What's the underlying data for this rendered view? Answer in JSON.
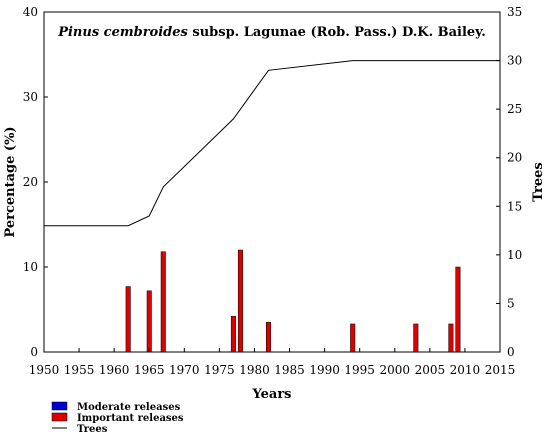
{
  "chart_data": {
    "type": "bar+line",
    "title_italic": "Pinus cembroides",
    "title_rest": " subsp. Lagunae (Rob. Pass.) D.K. Bailey.",
    "xlabel": "Years",
    "ylabel_left": "Percentage (%)",
    "ylabel_right": "Trees",
    "xlim": [
      1950,
      2015
    ],
    "ylim_left": [
      0,
      40
    ],
    "ylim_right": [
      0,
      35
    ],
    "x_ticks": [
      "1950",
      "1955",
      "1960",
      "1965",
      "1970",
      "1975",
      "1980",
      "1985",
      "1990",
      "1995",
      "2000",
      "2005",
      "2010",
      "2015"
    ],
    "y_left_ticks": [
      "0",
      "10",
      "20",
      "30",
      "40"
    ],
    "y_right_ticks": [
      "0",
      "5",
      "10",
      "15",
      "20",
      "25",
      "30",
      "35"
    ],
    "grid": false,
    "legend_position": "bottom-left",
    "series": [
      {
        "name": "Moderate releases",
        "kind": "bar",
        "axis": "left",
        "color": "#0000cc",
        "points": []
      },
      {
        "name": "Important releases",
        "kind": "bar",
        "axis": "left",
        "color": "#dd0000",
        "points": [
          {
            "x": 1962,
            "y": 7.7
          },
          {
            "x": 1965,
            "y": 7.2
          },
          {
            "x": 1967,
            "y": 11.8
          },
          {
            "x": 1977,
            "y": 4.2
          },
          {
            "x": 1978,
            "y": 12.0
          },
          {
            "x": 1982,
            "y": 3.5
          },
          {
            "x": 1994,
            "y": 3.3
          },
          {
            "x": 2003,
            "y": 3.3
          },
          {
            "x": 2008,
            "y": 3.3
          },
          {
            "x": 2009,
            "y": 10.0
          }
        ]
      },
      {
        "name": "Trees",
        "kind": "line",
        "axis": "right",
        "color": "#000000",
        "points": [
          {
            "x": 1950,
            "y": 13
          },
          {
            "x": 1962,
            "y": 13
          },
          {
            "x": 1965,
            "y": 14
          },
          {
            "x": 1967,
            "y": 17
          },
          {
            "x": 1977,
            "y": 24
          },
          {
            "x": 1982,
            "y": 29
          },
          {
            "x": 1994,
            "y": 30
          },
          {
            "x": 2015,
            "y": 30
          }
        ]
      }
    ]
  }
}
